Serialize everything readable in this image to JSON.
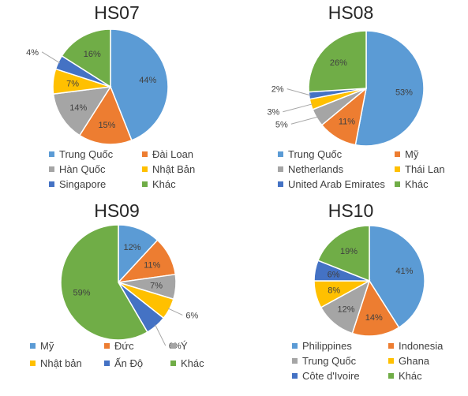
{
  "colors": {
    "blue": "#5b9bd5",
    "orange": "#ed7d31",
    "gray": "#a5a5a5",
    "yellow": "#ffc000",
    "darkblue": "#4472c4",
    "green": "#70ad47"
  },
  "chart_data": [
    {
      "type": "pie",
      "title": "HS07",
      "slices": [
        {
          "name": "Trung Quốc",
          "value": 44,
          "label": "44%",
          "color": "#5b9bd5"
        },
        {
          "name": "Đài Loan",
          "value": 15,
          "label": "15%",
          "color": "#ed7d31"
        },
        {
          "name": "Hàn Quốc",
          "value": 14,
          "label": "14%",
          "color": "#a5a5a5"
        },
        {
          "name": "Nhật Bản",
          "value": 7,
          "label": "7%",
          "color": "#ffc000"
        },
        {
          "name": "Singapore",
          "value": 4,
          "label": "4%",
          "color": "#4472c4"
        },
        {
          "name": "Khác",
          "value": 16,
          "label": "16%",
          "color": "#70ad47"
        }
      ]
    },
    {
      "type": "pie",
      "title": "HS08",
      "slices": [
        {
          "name": "Trung Quốc",
          "value": 53,
          "label": "53%",
          "color": "#5b9bd5"
        },
        {
          "name": "Mỹ",
          "value": 11,
          "label": "11%",
          "color": "#ed7d31"
        },
        {
          "name": "Netherlands",
          "value": 5,
          "label": "5%",
          "color": "#a5a5a5"
        },
        {
          "name": "Thái Lan",
          "value": 3,
          "label": "3%",
          "color": "#ffc000"
        },
        {
          "name": "United Arab Emirates",
          "value": 2,
          "label": "2%",
          "color": "#4472c4"
        },
        {
          "name": "Khác",
          "value": 26,
          "label": "26%",
          "color": "#70ad47"
        }
      ]
    },
    {
      "type": "pie",
      "title": "HS09",
      "slices": [
        {
          "name": "Mỹ",
          "value": 12,
          "label": "12%",
          "color": "#5b9bd5"
        },
        {
          "name": "Đức",
          "value": 11,
          "label": "11%",
          "color": "#ed7d31"
        },
        {
          "name": "Ý",
          "value": 7,
          "label": "7%",
          "color": "#a5a5a5"
        },
        {
          "name": "Nhật bản",
          "value": 6,
          "label": "6%",
          "color": "#ffc000"
        },
        {
          "name": "Ấn Độ",
          "value": 6,
          "label": "6%",
          "color": "#4472c4"
        },
        {
          "name": "Khác",
          "value": 59,
          "label": "59%",
          "color": "#70ad47"
        }
      ]
    },
    {
      "type": "pie",
      "title": "HS10",
      "slices": [
        {
          "name": "Philippines",
          "value": 41,
          "label": "41%",
          "color": "#5b9bd5"
        },
        {
          "name": "Indonesia",
          "value": 14,
          "label": "14%",
          "color": "#ed7d31"
        },
        {
          "name": "Trung Quốc",
          "value": 12,
          "label": "12%",
          "color": "#a5a5a5"
        },
        {
          "name": "Ghana",
          "value": 8,
          "label": "8%",
          "color": "#ffc000"
        },
        {
          "name": "Côte d'Ivoire",
          "value": 6,
          "label": "6%",
          "color": "#4472c4"
        },
        {
          "name": "Khác",
          "value": 19,
          "label": "19%",
          "color": "#70ad47"
        }
      ]
    }
  ]
}
